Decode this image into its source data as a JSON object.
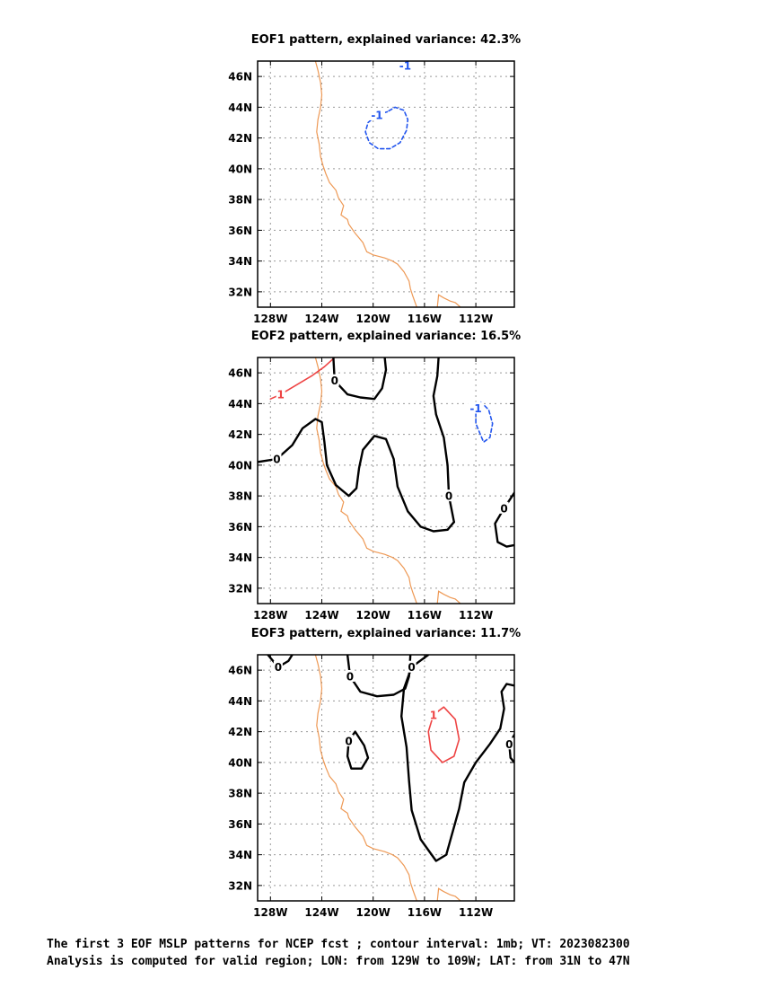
{
  "chart_data": [
    {
      "type": "contour",
      "title": "EOF1 pattern, explained variance: 42.3%",
      "x_ticks": [
        "128W",
        "124W",
        "120W",
        "116W",
        "112W"
      ],
      "x_tick_values": [
        -128,
        -124,
        -120,
        -116,
        -112
      ],
      "y_ticks": [
        "46N",
        "44N",
        "42N",
        "40N",
        "38N",
        "36N",
        "34N",
        "32N"
      ],
      "y_tick_values": [
        46,
        44,
        42,
        40,
        38,
        36,
        34,
        32
      ],
      "xlim": [
        -129,
        -109
      ],
      "ylim": [
        31,
        47
      ],
      "grid": true,
      "contours": [
        {
          "level": -1,
          "label": "-1",
          "color": "#2255ee",
          "dashed": true,
          "points": [
            [
              -118.9,
              43.7
            ],
            [
              -119.7,
              43.5
            ],
            [
              -120.4,
              43.0
            ],
            [
              -120.6,
              42.4
            ],
            [
              -120.3,
              41.7
            ],
            [
              -119.6,
              41.3
            ],
            [
              -118.7,
              41.3
            ],
            [
              -117.9,
              41.7
            ],
            [
              -117.4,
              42.5
            ],
            [
              -117.3,
              43.2
            ],
            [
              -117.6,
              43.8
            ],
            [
              -118.3,
              44.0
            ],
            [
              -118.9,
              43.7
            ]
          ]
        },
        {
          "level": -1,
          "label": "-1",
          "color": "#2255ee",
          "dashed": true,
          "points": [
            [
              -117.8,
              47.0
            ],
            [
              -117.5,
              46.7
            ],
            [
              -117.0,
              46.55
            ]
          ]
        }
      ]
    },
    {
      "type": "contour",
      "title": "EOF2 pattern, explained variance: 16.5%",
      "x_ticks": [
        "128W",
        "124W",
        "120W",
        "116W",
        "112W"
      ],
      "x_tick_values": [
        -128,
        -124,
        -120,
        -116,
        -112
      ],
      "y_ticks": [
        "46N",
        "44N",
        "42N",
        "40N",
        "38N",
        "36N",
        "34N",
        "32N"
      ],
      "y_tick_values": [
        46,
        44,
        42,
        40,
        38,
        36,
        34,
        32
      ],
      "xlim": [
        -129,
        -109
      ],
      "ylim": [
        31,
        47
      ],
      "grid": true,
      "contours": [
        {
          "level": 1,
          "label": "1",
          "color": "#ee4444",
          "dashed": false,
          "points": [
            [
              -128.0,
              44.3
            ],
            [
              -127.2,
              44.6
            ],
            [
              -126.0,
              45.2
            ],
            [
              -124.8,
              45.8
            ],
            [
              -123.8,
              46.4
            ],
            [
              -123.0,
              47.0
            ]
          ]
        },
        {
          "level": 0,
          "label": "0",
          "color": "#000000",
          "dashed": false,
          "points": [
            [
              -129.0,
              40.2
            ],
            [
              -127.5,
              40.4
            ],
            [
              -126.3,
              41.3
            ],
            [
              -125.5,
              42.4
            ],
            [
              -124.5,
              43.0
            ],
            [
              -124.0,
              42.8
            ],
            [
              -123.8,
              41.5
            ],
            [
              -123.6,
              40.0
            ],
            [
              -122.9,
              38.7
            ],
            [
              -121.9,
              38.0
            ],
            [
              -121.3,
              38.5
            ],
            [
              -121.1,
              39.8
            ],
            [
              -120.8,
              41.0
            ],
            [
              -119.9,
              41.9
            ],
            [
              -119.0,
              41.7
            ],
            [
              -118.4,
              40.4
            ],
            [
              -118.1,
              38.6
            ],
            [
              -117.3,
              37.0
            ],
            [
              -116.3,
              36.0
            ],
            [
              -115.3,
              35.7
            ],
            [
              -114.2,
              35.8
            ],
            [
              -113.7,
              36.3
            ]
          ]
        },
        {
          "level": 0,
          "label": "0",
          "color": "#000000",
          "dashed": false,
          "points": [
            [
              -113.7,
              36.3
            ],
            [
              -114.1,
              38.0
            ],
            [
              -114.2,
              40.0
            ],
            [
              -114.5,
              41.8
            ],
            [
              -115.1,
              43.3
            ],
            [
              -115.3,
              44.5
            ],
            [
              -115.0,
              45.8
            ],
            [
              -114.9,
              47.0
            ]
          ]
        },
        {
          "level": 0,
          "label": "0",
          "color": "#000000",
          "dashed": false,
          "points": [
            [
              -123.1,
              47.0
            ],
            [
              -123.0,
              45.5
            ],
            [
              -122.0,
              44.6
            ],
            [
              -121.0,
              44.4
            ],
            [
              -119.9,
              44.3
            ],
            [
              -119.3,
              45.0
            ],
            [
              -119.0,
              46.2
            ],
            [
              -119.1,
              47.0
            ]
          ]
        },
        {
          "level": 0,
          "label": "0",
          "color": "#000000",
          "dashed": false,
          "points": [
            [
              -109.0,
              38.2
            ],
            [
              -109.8,
              37.2
            ],
            [
              -110.5,
              36.2
            ],
            [
              -110.3,
              35.0
            ],
            [
              -109.6,
              34.7
            ],
            [
              -109.0,
              34.8
            ]
          ]
        },
        {
          "level": -1,
          "label": "-1",
          "color": "#2255ee",
          "dashed": true,
          "points": [
            [
              -111.6,
              44.1
            ],
            [
              -112.0,
              43.7
            ],
            [
              -112.0,
              42.7
            ],
            [
              -111.4,
              41.5
            ],
            [
              -110.9,
              41.8
            ],
            [
              -110.7,
              42.7
            ],
            [
              -111.0,
              43.6
            ],
            [
              -111.6,
              44.1
            ]
          ]
        }
      ]
    },
    {
      "type": "contour",
      "title": "EOF3 pattern, explained variance: 11.7%",
      "x_ticks": [
        "128W",
        "124W",
        "120W",
        "116W",
        "112W"
      ],
      "x_tick_values": [
        -128,
        -124,
        -120,
        -116,
        -112
      ],
      "y_ticks": [
        "46N",
        "44N",
        "42N",
        "40N",
        "38N",
        "36N",
        "34N",
        "32N"
      ],
      "y_tick_values": [
        46,
        44,
        42,
        40,
        38,
        36,
        34,
        32
      ],
      "xlim": [
        -129,
        -109
      ],
      "ylim": [
        31,
        47
      ],
      "grid": true,
      "contours": [
        {
          "level": 0,
          "label": "0",
          "color": "#000000",
          "dashed": false,
          "points": [
            [
              -128.2,
              47.0
            ],
            [
              -127.4,
              46.2
            ],
            [
              -126.6,
              46.6
            ],
            [
              -126.3,
              47.0
            ]
          ]
        },
        {
          "level": 0,
          "label": "0",
          "color": "#000000",
          "dashed": false,
          "points": [
            [
              -122.0,
              47.0
            ],
            [
              -121.8,
              45.6
            ],
            [
              -121.0,
              44.6
            ],
            [
              -119.7,
              44.3
            ],
            [
              -118.4,
              44.4
            ],
            [
              -117.5,
              44.8
            ],
            [
              -117.2,
              45.6
            ],
            [
              -117.1,
              47.0
            ]
          ]
        },
        {
          "level": 0,
          "label": "0",
          "color": "#000000",
          "dashed": false,
          "points": [
            [
              -121.4,
              42.0
            ],
            [
              -121.9,
              41.4
            ],
            [
              -122.0,
              40.4
            ],
            [
              -121.7,
              39.6
            ],
            [
              -120.9,
              39.6
            ],
            [
              -120.4,
              40.3
            ],
            [
              -120.7,
              41.1
            ],
            [
              -121.4,
              42.0
            ]
          ]
        },
        {
          "level": 0,
          "label": "0",
          "color": "#000000",
          "dashed": false,
          "points": [
            [
              -115.7,
              47.0
            ],
            [
              -117.0,
              46.2
            ],
            [
              -117.6,
              44.8
            ],
            [
              -117.8,
              43.0
            ],
            [
              -117.4,
              41.0
            ],
            [
              -117.2,
              38.8
            ],
            [
              -117.0,
              36.9
            ],
            [
              -116.3,
              35.0
            ],
            [
              -115.1,
              33.6
            ],
            [
              -114.3,
              34.0
            ],
            [
              -113.9,
              35.2
            ],
            [
              -113.3,
              37.0
            ],
            [
              -112.9,
              38.7
            ],
            [
              -112.0,
              40.0
            ],
            [
              -110.9,
              41.2
            ],
            [
              -110.1,
              42.2
            ],
            [
              -109.8,
              43.5
            ],
            [
              -110.0,
              44.6
            ],
            [
              -109.6,
              45.1
            ],
            [
              -109.0,
              45.0
            ]
          ]
        },
        {
          "level": 0,
          "label": "0",
          "color": "#000000",
          "dashed": false,
          "points": [
            [
              -109.0,
              41.8
            ],
            [
              -109.4,
              41.2
            ],
            [
              -109.3,
              40.3
            ],
            [
              -109.0,
              40.0
            ]
          ]
        },
        {
          "level": 1,
          "label": "1",
          "color": "#ee4444",
          "dashed": false,
          "points": [
            [
              -114.5,
              43.6
            ],
            [
              -115.3,
              43.1
            ],
            [
              -115.7,
              42.0
            ],
            [
              -115.5,
              40.8
            ],
            [
              -114.6,
              40.0
            ],
            [
              -113.7,
              40.4
            ],
            [
              -113.3,
              41.5
            ],
            [
              -113.6,
              42.8
            ],
            [
              -114.5,
              43.6
            ]
          ]
        }
      ]
    }
  ],
  "coastline": [
    [
      -124.5,
      47.0
    ],
    [
      -124.3,
      46.4
    ],
    [
      -124.1,
      45.6
    ],
    [
      -124.0,
      44.8
    ],
    [
      -124.1,
      44.0
    ],
    [
      -124.3,
      43.2
    ],
    [
      -124.4,
      42.4
    ],
    [
      -124.2,
      41.6
    ],
    [
      -124.1,
      40.8
    ],
    [
      -123.9,
      40.2
    ],
    [
      -123.7,
      39.7
    ],
    [
      -123.4,
      39.1
    ],
    [
      -122.9,
      38.6
    ],
    [
      -122.7,
      38.1
    ],
    [
      -122.3,
      37.6
    ],
    [
      -122.5,
      37.0
    ],
    [
      -122.0,
      36.7
    ],
    [
      -121.9,
      36.4
    ],
    [
      -121.4,
      35.8
    ],
    [
      -120.8,
      35.2
    ],
    [
      -120.5,
      34.6
    ],
    [
      -120.0,
      34.4
    ],
    [
      -119.1,
      34.2
    ],
    [
      -118.5,
      34.0
    ],
    [
      -118.1,
      33.8
    ],
    [
      -117.6,
      33.3
    ],
    [
      -117.2,
      32.7
    ],
    [
      -117.1,
      32.2
    ],
    [
      -116.9,
      31.7
    ],
    [
      -116.6,
      31.0
    ]
  ],
  "gulf_coast": [
    [
      -115.0,
      31.0
    ],
    [
      -114.9,
      31.8
    ],
    [
      -114.5,
      31.6
    ],
    [
      -114.0,
      31.4
    ],
    [
      -113.6,
      31.3
    ],
    [
      -113.2,
      31.0
    ]
  ],
  "style": {
    "coast_color": "#ee9955",
    "grid_color": "#999999"
  },
  "caption": {
    "line1": "The first 3 EOF MSLP patterns for NCEP fcst ; contour interval: 1mb; VT: 2023082300",
    "line2": "Analysis is computed for valid region; LON: from 129W to 109W; LAT: from 31N to 47N"
  }
}
